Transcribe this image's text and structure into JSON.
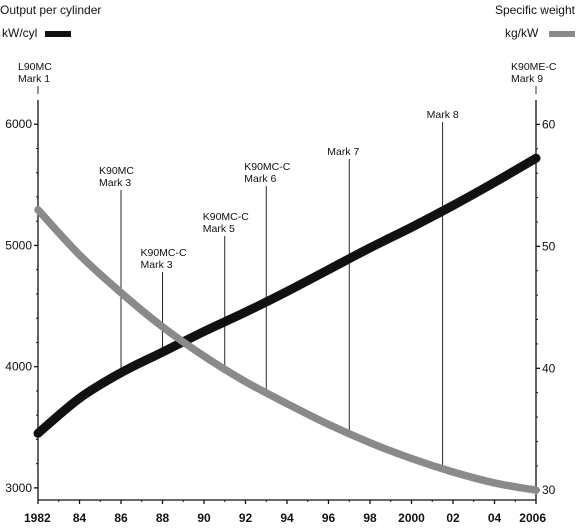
{
  "chart_data": {
    "type": "line",
    "left_axis_title": "Output per cylinder",
    "right_axis_title": "Specific weight",
    "series": [
      {
        "name": "kW/cyl",
        "axis": "left",
        "color": "#111111",
        "x": [
          1982,
          1984,
          1986,
          1988,
          1990,
          1992,
          1994,
          1996,
          1998,
          2000,
          2002,
          2004,
          2006
        ],
        "values": [
          3450,
          3740,
          3950,
          4120,
          4290,
          4450,
          4620,
          4800,
          4980,
          5150,
          5330,
          5520,
          5720
        ]
      },
      {
        "name": "kg/kW",
        "axis": "right",
        "color": "#8a8a8a",
        "x": [
          1982,
          1984,
          1986,
          1988,
          1990,
          1992,
          1994,
          1996,
          1998,
          2000,
          2002,
          2004,
          2006
        ],
        "values": [
          53.0,
          49.3,
          46.2,
          43.4,
          41.0,
          38.9,
          37.1,
          35.4,
          33.9,
          32.6,
          31.5,
          30.6,
          30.0
        ]
      }
    ],
    "left_axis": {
      "ylim": [
        2900,
        6200
      ],
      "ticks": [
        3000,
        4000,
        5000,
        6000
      ]
    },
    "right_axis": {
      "ylim": [
        29.2,
        62
      ],
      "ticks": [
        30,
        40,
        50,
        60
      ]
    },
    "x_axis": {
      "xlim": [
        1982,
        2006
      ],
      "ticks": [
        1982,
        1984,
        1986,
        1988,
        1990,
        1992,
        1994,
        1996,
        1998,
        2000,
        2002,
        2004,
        2006
      ],
      "tick_labels": [
        "1982",
        "84",
        "86",
        "88",
        "90",
        "92",
        "94",
        "96",
        "98",
        "2000",
        "02",
        "04",
        "2006"
      ]
    },
    "annotations": [
      {
        "lines": [
          "L90MC",
          "Mark 1"
        ],
        "x": 1982
      },
      {
        "lines": [
          "K90MC",
          "Mark 3"
        ],
        "x": 1986
      },
      {
        "lines": [
          "K90MC-C",
          "Mark 3"
        ],
        "x": 1988
      },
      {
        "lines": [
          "K90MC-C",
          "Mark 5"
        ],
        "x": 1991
      },
      {
        "lines": [
          "K90MC-C",
          "Mark 6"
        ],
        "x": 1993
      },
      {
        "lines": [
          "Mark 7"
        ],
        "x": 1997
      },
      {
        "lines": [
          "Mark 8"
        ],
        "x": 2001.5
      },
      {
        "lines": [
          "K90ME-C",
          "Mark 9"
        ],
        "x": 2006
      }
    ],
    "grid": false
  }
}
